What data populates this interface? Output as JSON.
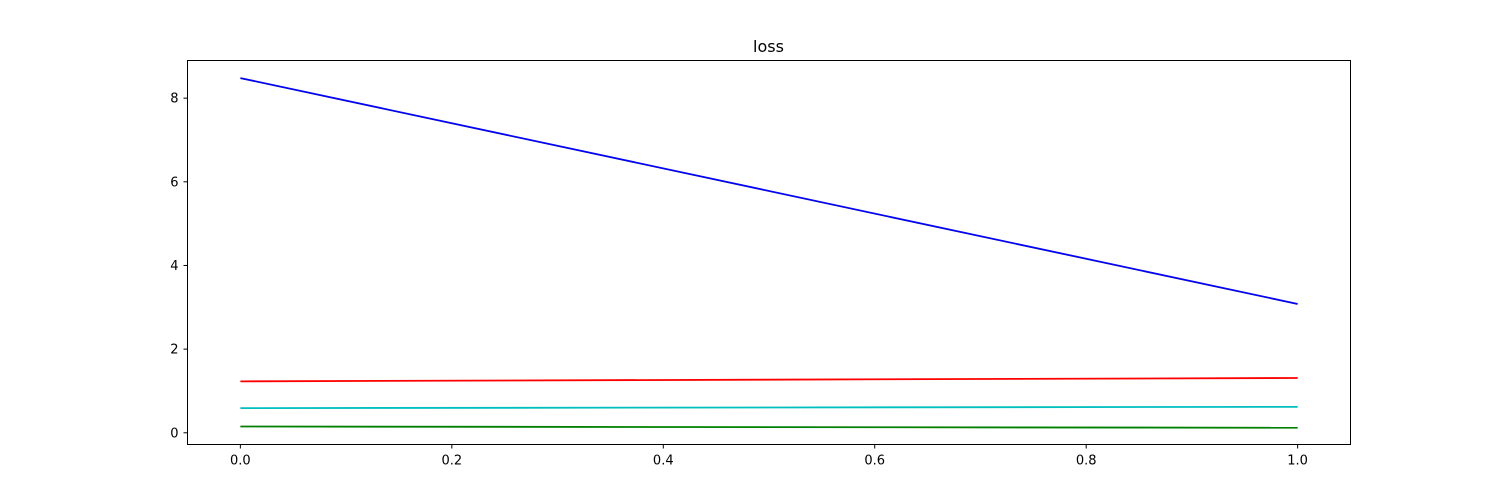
{
  "chart_data": {
    "type": "line",
    "title": "loss",
    "xlabel": "",
    "ylabel": "",
    "x": [
      0.0,
      1.0
    ],
    "xlim": [
      -0.05,
      1.05
    ],
    "ylim": [
      -0.28,
      8.9
    ],
    "xticks": [
      0.0,
      0.2,
      0.4,
      0.6,
      0.8,
      1.0
    ],
    "xtick_labels": [
      "0.0",
      "0.2",
      "0.4",
      "0.6",
      "0.8",
      "1.0"
    ],
    "yticks": [
      0,
      2,
      4,
      6,
      8
    ],
    "ytick_labels": [
      "0",
      "2",
      "4",
      "6",
      "8"
    ],
    "grid": false,
    "legend": "none",
    "series": [
      {
        "color": "#0000ff",
        "values": [
          8.48,
          3.08
        ]
      },
      {
        "color": "#ff0000",
        "values": [
          1.23,
          1.31
        ]
      },
      {
        "color": "#00bfbf",
        "values": [
          0.59,
          0.62
        ]
      },
      {
        "color": "#008000",
        "values": [
          0.15,
          0.12
        ]
      }
    ]
  }
}
